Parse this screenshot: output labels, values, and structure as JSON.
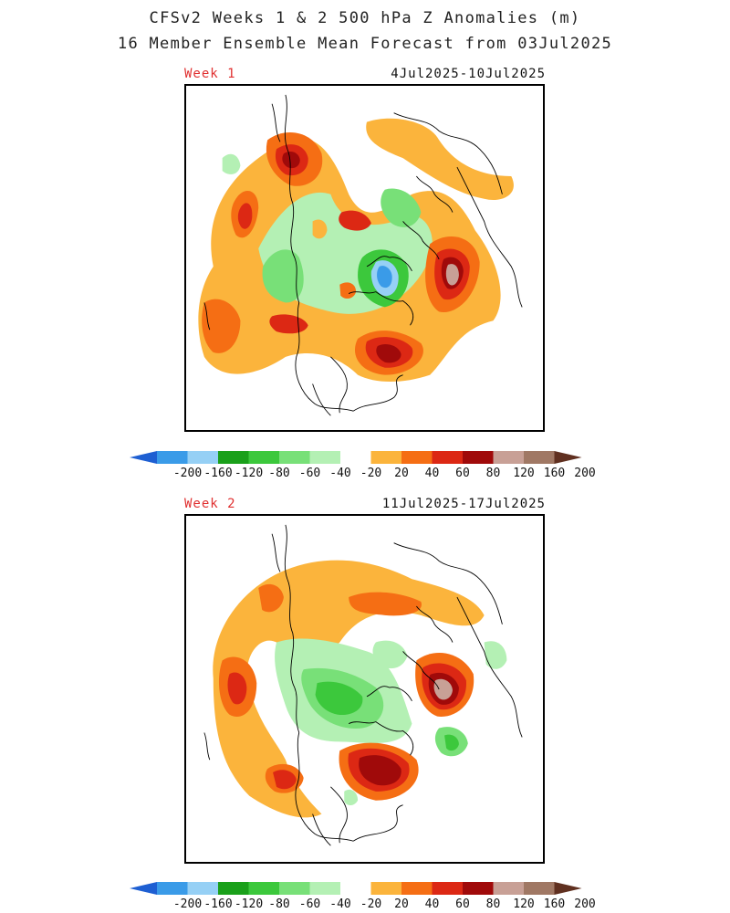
{
  "title_line1": "CFSv2 Weeks 1 & 2 500 hPa Z Anomalies (m)",
  "title_line2": "16 Member Ensemble Mean Forecast from 03Jul2025",
  "panels": [
    {
      "label": "Week 1",
      "dates": "4Jul2025-10Jul2025"
    },
    {
      "label": "Week 2",
      "dates": "11Jul2025-17Jul2025"
    }
  ],
  "colorbar": {
    "labels": [
      "-200",
      "-160",
      "-120",
      "-80",
      "-60",
      "-40",
      "-20",
      "20",
      "40",
      "60",
      "80",
      "120",
      "160",
      "200"
    ],
    "colors": [
      "#3a9be8",
      "#96d0f5",
      "#1aa01a",
      "#3cc83c",
      "#78e078",
      "#b4f0b4",
      "#ffffff",
      "#fbb43c",
      "#f56e14",
      "#dc2814",
      "#a00a0a",
      "#c8a096",
      "#a07864"
    ],
    "low_arrow": "#1e5fd2",
    "high_arrow": "#603020"
  },
  "palette": {
    "o20": "#fbb43c",
    "o40": "#f56e14",
    "r60": "#dc2814",
    "r80": "#a00a0a",
    "r120": "#c8a096",
    "g20": "#b4f0b4",
    "g40": "#78e078",
    "g60": "#3cc83c",
    "b120": "#3a9be8",
    "b160": "#96d0f5"
  }
}
